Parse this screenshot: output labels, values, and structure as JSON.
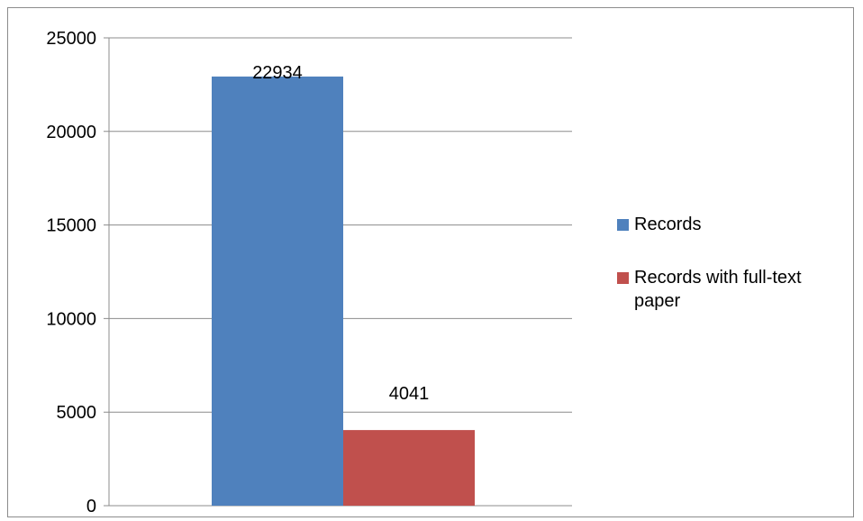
{
  "chart_data": {
    "type": "bar",
    "categories": [
      ""
    ],
    "series": [
      {
        "name": "Records",
        "values": [
          22934
        ],
        "color": "#4F81BD"
      },
      {
        "name": "Records with full-text paper",
        "values": [
          4041
        ],
        "color": "#C0504D"
      }
    ],
    "ylim": [
      0,
      25000
    ],
    "yticks": [
      0,
      5000,
      10000,
      15000,
      20000,
      25000
    ],
    "data_labels": [
      "22934",
      "4041"
    ],
    "grid": true,
    "legend": "right",
    "gridline_color": "#8c8c8c"
  }
}
